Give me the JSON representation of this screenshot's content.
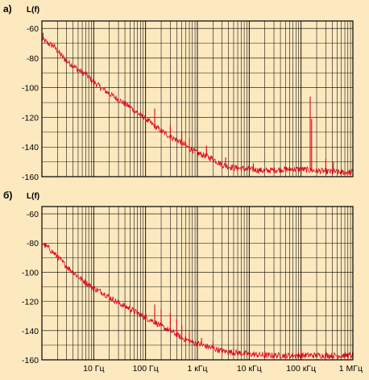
{
  "chart_data": [
    {
      "type": "line",
      "panel_label": "а)",
      "ylabel": "L(f)",
      "xscale": "log",
      "xlim": [
        1,
        1000000
      ],
      "ylim": [
        -160,
        -55
      ],
      "yticks": [
        -60,
        -80,
        -100,
        -120,
        -140,
        -160
      ],
      "grid": true,
      "series_color": "#e0001a",
      "x": [
        1.0,
        1.3,
        1.7,
        2.2,
        3,
        4,
        5,
        7,
        10,
        15,
        20,
        30,
        50,
        70,
        100,
        150,
        200,
        300,
        500,
        700,
        1000,
        2000,
        3000,
        5000,
        10000,
        20000,
        50000,
        100000,
        200000,
        500000,
        1000000
      ],
      "y": [
        -67,
        -70,
        -72,
        -77,
        -82,
        -85,
        -88,
        -91,
        -96,
        -101,
        -104,
        -108,
        -113,
        -117,
        -121,
        -126,
        -129,
        -133,
        -137,
        -141,
        -144,
        -148,
        -152,
        -154,
        -155,
        -156,
        -155,
        -155,
        -156,
        -157,
        -157
      ],
      "spikes": [
        {
          "x": 1.05,
          "y": -63
        },
        {
          "x": 1.7,
          "y": -71
        },
        {
          "x": 150,
          "y": -114
        },
        {
          "x": 300,
          "y": -125
        },
        {
          "x": 500,
          "y": -130
        },
        {
          "x": 700,
          "y": -134
        },
        {
          "x": 1500,
          "y": -139
        },
        {
          "x": 3500,
          "y": -147
        },
        {
          "x": 12000,
          "y": -151
        },
        {
          "x": 150000,
          "y": -106
        },
        {
          "x": 160000,
          "y": -121
        },
        {
          "x": 300000,
          "y": -148
        },
        {
          "x": 420000,
          "y": -150
        }
      ]
    },
    {
      "type": "line",
      "panel_label": "б)",
      "ylabel": "L(f)",
      "xscale": "log",
      "xlim": [
        1,
        1000000
      ],
      "ylim": [
        -160,
        -55
      ],
      "yticks": [
        -60,
        -80,
        -100,
        -120,
        -140,
        -160
      ],
      "grid": true,
      "series_color": "#e0001a",
      "xtick_labels": [
        {
          "x": 10,
          "label": "10 Гц"
        },
        {
          "x": 100,
          "label": "100 Гц"
        },
        {
          "x": 1000,
          "label": "1 кГц"
        },
        {
          "x": 10000,
          "label": "10 кГц"
        },
        {
          "x": 100000,
          "label": "100 кГц"
        },
        {
          "x": 1000000,
          "label": "1 МГц"
        }
      ],
      "x": [
        1.0,
        1.3,
        1.7,
        2.2,
        3,
        4,
        5,
        7,
        10,
        15,
        20,
        30,
        50,
        70,
        100,
        150,
        200,
        300,
        500,
        700,
        1000,
        2000,
        3000,
        5000,
        10000,
        20000,
        50000,
        100000,
        200000,
        500000,
        1000000
      ],
      "y": [
        -80,
        -83,
        -87,
        -91,
        -96,
        -100,
        -103,
        -107,
        -111,
        -114,
        -117,
        -121,
        -125,
        -128,
        -131,
        -134,
        -137,
        -140,
        -145,
        -147,
        -149,
        -152,
        -154,
        -155,
        -156,
        -157,
        -157,
        -157,
        -157,
        -157,
        -157
      ],
      "spikes": [
        {
          "x": 100,
          "y": -126
        },
        {
          "x": 150,
          "y": -122
        },
        {
          "x": 200,
          "y": -125
        },
        {
          "x": 300,
          "y": -128
        },
        {
          "x": 400,
          "y": -132
        },
        {
          "x": 500,
          "y": -136
        },
        {
          "x": 700,
          "y": -140
        },
        {
          "x": 1200,
          "y": -145
        },
        {
          "x": 2000,
          "y": -148
        },
        {
          "x": 5000,
          "y": -152
        },
        {
          "x": 20000,
          "y": -154
        },
        {
          "x": 100000,
          "y": -153
        },
        {
          "x": 300000,
          "y": -153
        }
      ]
    }
  ]
}
